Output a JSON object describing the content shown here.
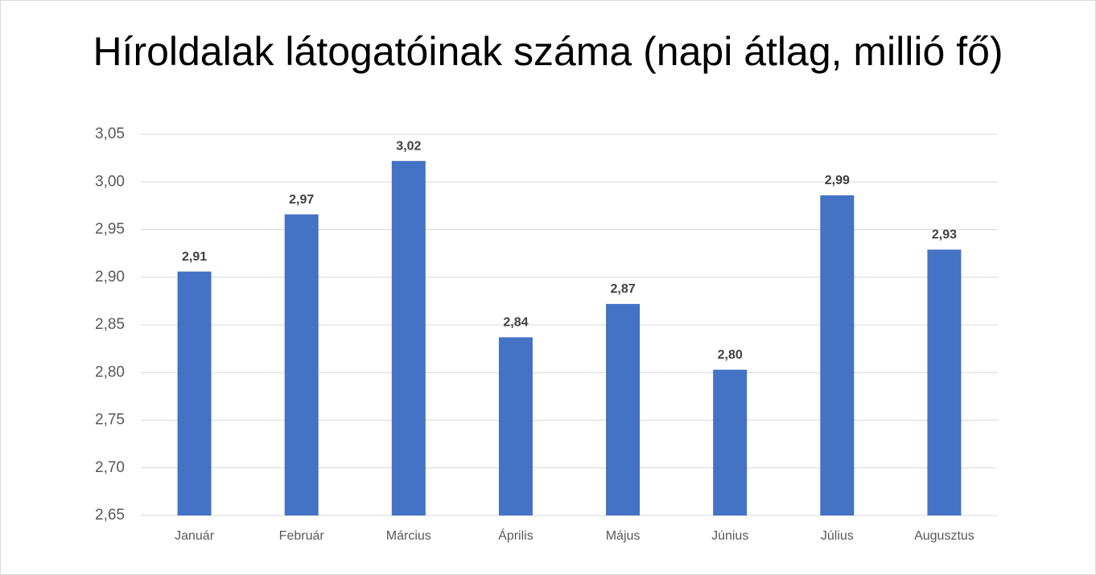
{
  "chart_data": {
    "type": "bar",
    "title": "Híroldalak látogatóinak száma (napi átlag, millió fő)",
    "categories": [
      "Január",
      "Február",
      "Március",
      "Április",
      "Május",
      "Június",
      "Július",
      "Augusztus"
    ],
    "values": [
      2.906,
      2.966,
      3.022,
      2.837,
      2.872,
      2.803,
      2.986,
      2.929
    ],
    "value_labels": [
      "2,91",
      "2,97",
      "3,02",
      "2,84",
      "2,87",
      "2,80",
      "2,99",
      "2,93"
    ],
    "color": "#4472c4",
    "ylim": [
      2.65,
      3.05
    ],
    "yticks": [
      {
        "value": 2.65,
        "label": "2,65"
      },
      {
        "value": 2.7,
        "label": "2,70"
      },
      {
        "value": 2.75,
        "label": "2,75"
      },
      {
        "value": 2.8,
        "label": "2,80"
      },
      {
        "value": 2.85,
        "label": "2,85"
      },
      {
        "value": 2.9,
        "label": "2,90"
      },
      {
        "value": 2.95,
        "label": "2,95"
      },
      {
        "value": 3.0,
        "label": "3,00"
      },
      {
        "value": 3.05,
        "label": "3,05"
      }
    ],
    "grid": true
  }
}
